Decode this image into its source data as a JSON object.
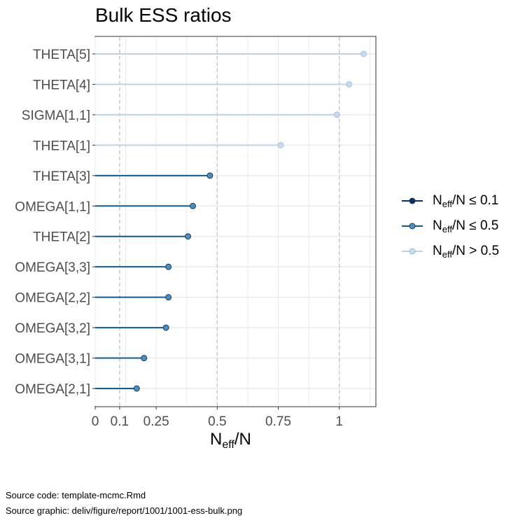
{
  "title": "Bulk ESS ratios",
  "xlabel": {
    "n": "N",
    "sub": "eff",
    "tail": "/N"
  },
  "caption": {
    "line1": "Source code: template-mcmc.Rmd",
    "line2": "Source graphic: deliv/figure/report/1001/1001-ess-bulk.png"
  },
  "legend": [
    {
      "n": "N",
      "sub": "eff",
      "tail": "/N ≤ 0.1",
      "color": "#08306b",
      "fill": "#08306b"
    },
    {
      "n": "N",
      "sub": "eff",
      "tail": "/N ≤ 0.5",
      "color": "#0d5b97",
      "fill": "#4a90bd"
    },
    {
      "n": "N",
      "sub": "eff",
      "tail": "/N > 0.5",
      "color": "#b9d3ea",
      "fill": "#c6dbef"
    }
  ],
  "chart_data": {
    "type": "scatter",
    "xlim": [
      0,
      1.15
    ],
    "x_ticks": [
      0,
      0.1,
      0.25,
      0.5,
      0.75,
      1
    ],
    "x_tick_labels": [
      "0",
      "0.1",
      "0.25",
      "0.5",
      "0.75",
      "1"
    ],
    "reference_lines": [
      0.1,
      0.5,
      1
    ],
    "grid": true,
    "legend_position": "right",
    "categories": [
      "THETA[5]",
      "THETA[4]",
      "SIGMA[1,1]",
      "THETA[1]",
      "THETA[3]",
      "OMEGA[1,1]",
      "THETA[2]",
      "OMEGA[3,3]",
      "OMEGA[2,2]",
      "OMEGA[3,2]",
      "OMEGA[3,1]",
      "OMEGA[2,1]"
    ],
    "values": [
      1.1,
      1.04,
      0.99,
      0.76,
      0.47,
      0.4,
      0.38,
      0.3,
      0.3,
      0.29,
      0.2,
      0.17
    ],
    "groups": [
      2,
      2,
      2,
      2,
      1,
      1,
      1,
      1,
      1,
      1,
      1,
      1
    ]
  }
}
